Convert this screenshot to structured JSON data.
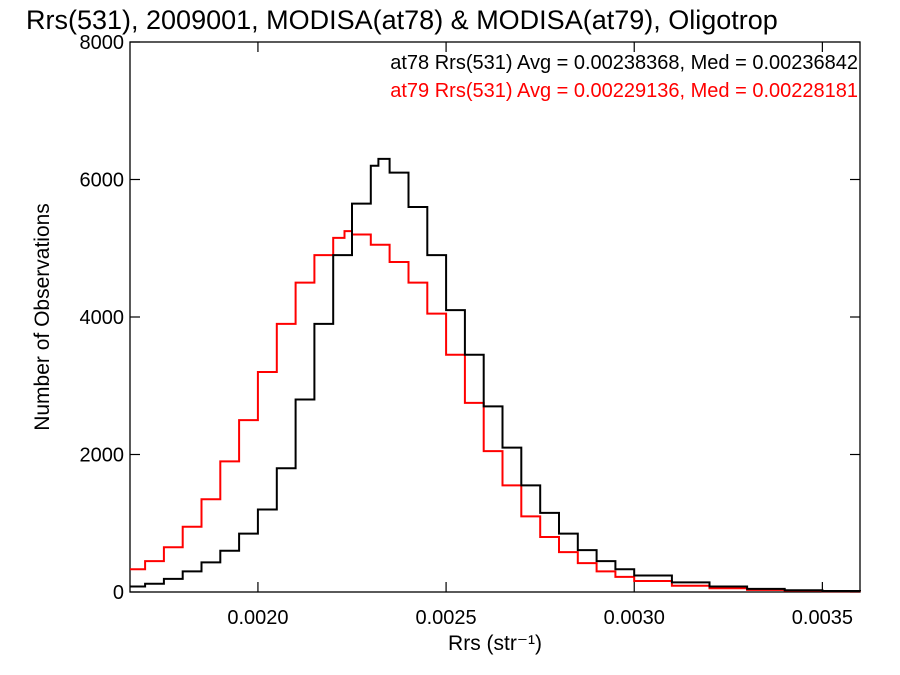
{
  "chart_data": {
    "type": "line",
    "title": "Rrs(531), 2009001, MODISA(at78) & MODISA(at79), Oligotrop",
    "xlabel": "Rrs (str⁻¹)",
    "ylabel": "Number of Observations",
    "xlim": [
      0.00166,
      0.0036
    ],
    "ylim": [
      0,
      8000
    ],
    "xticks": [
      0.002,
      0.0025,
      0.003,
      0.0035
    ],
    "xtick_labels": [
      "0.0020",
      "0.0025",
      "0.0030",
      "0.0035"
    ],
    "yticks": [
      0,
      2000,
      4000,
      6000,
      8000
    ],
    "ytick_labels": [
      "0",
      "2000",
      "4000",
      "6000",
      "8000"
    ],
    "grid": false,
    "legend_position": "top-right",
    "series": [
      {
        "name": "at78 Rrs(531) Avg = 0.00238368, Med = 0.00236842",
        "color": "#000000",
        "x": [
          0.00166,
          0.0017,
          0.00175,
          0.0018,
          0.00185,
          0.0019,
          0.00195,
          0.002,
          0.00205,
          0.0021,
          0.00215,
          0.0022,
          0.00225,
          0.0023,
          0.00232,
          0.00235,
          0.0024,
          0.00245,
          0.0025,
          0.00255,
          0.0026,
          0.00265,
          0.0027,
          0.00275,
          0.0028,
          0.00285,
          0.0029,
          0.00295,
          0.003,
          0.0031,
          0.0032,
          0.0033,
          0.0034,
          0.0035,
          0.0036
        ],
        "y": [
          80,
          120,
          190,
          300,
          430,
          600,
          850,
          1200,
          1800,
          2800,
          3900,
          4900,
          5650,
          6200,
          6300,
          6100,
          5600,
          4900,
          4100,
          3450,
          2700,
          2100,
          1550,
          1150,
          850,
          610,
          450,
          330,
          240,
          140,
          80,
          45,
          25,
          15,
          10
        ]
      },
      {
        "name": "at79 Rrs(531) Avg = 0.00229136, Med = 0.00228181",
        "color": "#ff0000",
        "x": [
          0.00166,
          0.0017,
          0.00175,
          0.0018,
          0.00185,
          0.0019,
          0.00195,
          0.002,
          0.00205,
          0.0021,
          0.00215,
          0.0022,
          0.00223,
          0.00225,
          0.0023,
          0.00235,
          0.0024,
          0.00245,
          0.0025,
          0.00255,
          0.0026,
          0.00265,
          0.0027,
          0.00275,
          0.0028,
          0.00285,
          0.0029,
          0.00295,
          0.003,
          0.0031,
          0.0032,
          0.0033,
          0.0034,
          0.0035,
          0.0036
        ],
        "y": [
          330,
          450,
          650,
          950,
          1350,
          1900,
          2500,
          3200,
          3900,
          4500,
          4900,
          5150,
          5250,
          5200,
          5050,
          4800,
          4500,
          4050,
          3450,
          2750,
          2050,
          1550,
          1100,
          800,
          580,
          420,
          300,
          220,
          160,
          90,
          55,
          30,
          20,
          12,
          8
        ]
      }
    ]
  }
}
